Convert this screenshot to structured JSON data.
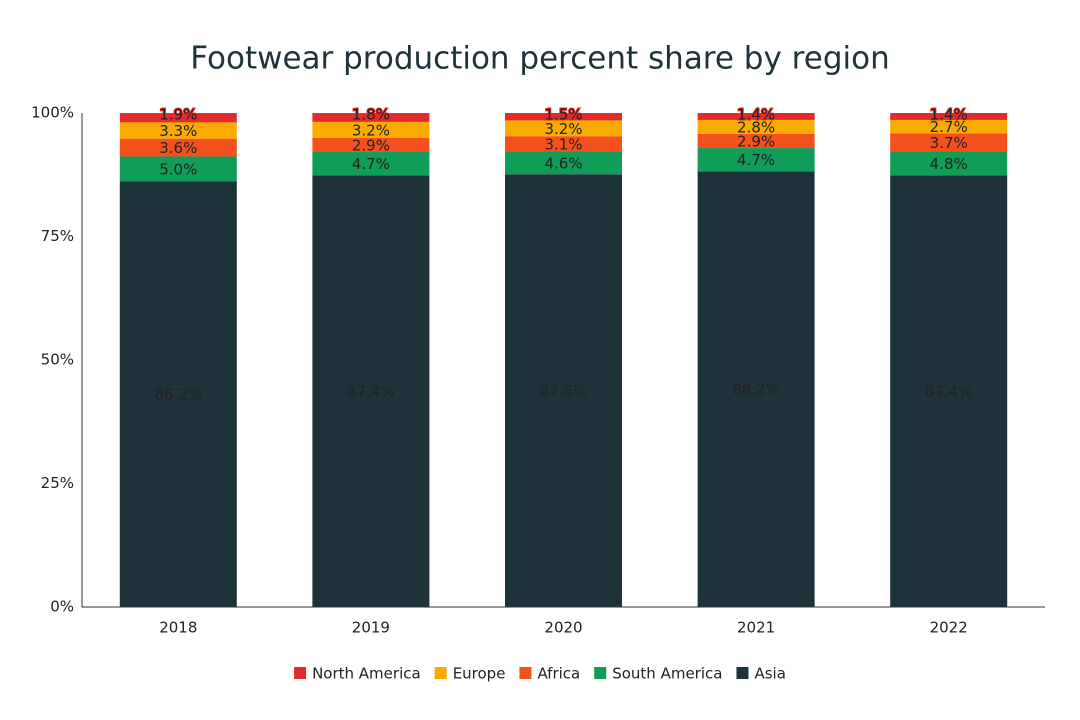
{
  "chart_data": {
    "type": "stacked_bar",
    "title": "Footwear production percent share by region",
    "categories": [
      "2018",
      "2019",
      "2020",
      "2021",
      "2022"
    ],
    "series": [
      {
        "name": "North America",
        "color": "#e32b2b",
        "label_color": "#ffffff",
        "values": [
          1.9,
          1.8,
          1.5,
          1.4,
          1.4
        ],
        "value_labels": [
          "1.9%",
          "1.8%",
          "1.5%",
          "1.4%",
          "1.4%"
        ]
      },
      {
        "name": "Europe",
        "color": "#f9ab00",
        "label_color": "#000000",
        "values": [
          3.3,
          3.2,
          3.2,
          2.8,
          2.7
        ],
        "value_labels": [
          "3.3%",
          "3.2%",
          "3.2%",
          "2.8%",
          "2.7%"
        ]
      },
      {
        "name": "Africa",
        "color": "#f4511e",
        "label_color": "#ffffff",
        "values": [
          3.6,
          2.9,
          3.1,
          2.9,
          3.7
        ],
        "value_labels": [
          "3.6%",
          "2.9%",
          "3.1%",
          "2.9%",
          "3.7%"
        ]
      },
      {
        "name": "South America",
        "color": "#0f9d58",
        "label_color": "#ffffff",
        "values": [
          5.0,
          4.7,
          4.6,
          4.7,
          4.8
        ],
        "value_labels": [
          "5.0%",
          "4.7%",
          "4.6%",
          "4.7%",
          "4.8%"
        ]
      },
      {
        "name": "Asia",
        "color": "#1e3339",
        "label_color": "#ffffff",
        "values": [
          86.2,
          87.4,
          87.6,
          88.2,
          87.4
        ],
        "value_labels": [
          "86.2%",
          "87.4%",
          "87.6%",
          "88.2%",
          "87.4%"
        ]
      }
    ],
    "ylim": [
      0,
      100
    ],
    "yticks": [
      {
        "value": 0,
        "label": "0%"
      },
      {
        "value": 25,
        "label": "25%"
      },
      {
        "value": 50,
        "label": "50%"
      },
      {
        "value": 75,
        "label": "75%"
      },
      {
        "value": 100,
        "label": "100%"
      }
    ],
    "grid": false,
    "legend": "bottom"
  }
}
